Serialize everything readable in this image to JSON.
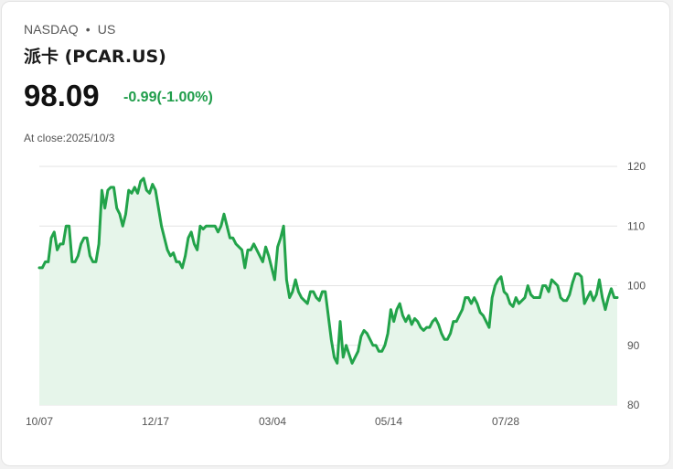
{
  "header": {
    "exchange": "NASDAQ",
    "market": "US",
    "name": "派卡 (PCAR.US)",
    "price": "98.09",
    "change": "-0.99(-1.00%)",
    "close_label": "At close:2025/10/3"
  },
  "colors": {
    "line": "#22a34a",
    "fill": "#e6f5ea",
    "change": "#1f9d4a",
    "grid": "#e3e3e3"
  },
  "chart_data": {
    "type": "area",
    "ylim": [
      80,
      120
    ],
    "yticks": [
      "80",
      "90",
      "100",
      "110",
      "120"
    ],
    "xticks": [
      "10/07",
      "12/17",
      "03/04",
      "05/14",
      "07/28"
    ],
    "grid": true,
    "values": [
      103.0,
      103.0,
      104.0,
      104.0,
      108.0,
      109.0,
      106.0,
      107.0,
      107.0,
      110.0,
      110.0,
      104.0,
      104.0,
      105.0,
      107.0,
      108.0,
      108.0,
      105.0,
      104.0,
      104.0,
      107.0,
      116.0,
      113.0,
      116.0,
      116.5,
      116.5,
      113.0,
      112.0,
      110.0,
      112.0,
      116.0,
      115.5,
      116.5,
      115.5,
      117.5,
      118.0,
      116.0,
      115.5,
      117.0,
      116.0,
      113.0,
      110.0,
      108.0,
      106.0,
      105.0,
      105.5,
      104.0,
      104.0,
      103.0,
      105.0,
      108.0,
      109.0,
      107.0,
      106.0,
      110.0,
      109.5,
      110.0,
      110.0,
      110.0,
      110.0,
      109.0,
      110.0,
      112.0,
      110.0,
      108.0,
      108.0,
      107.0,
      106.5,
      106.0,
      103.0,
      106.0,
      106.0,
      107.0,
      106.0,
      105.0,
      104.0,
      106.5,
      105.0,
      103.0,
      101.0,
      106.5,
      108.0,
      110.0,
      101.0,
      98.0,
      99.0,
      101.0,
      99.0,
      98.0,
      97.5,
      97.0,
      99.0,
      99.0,
      98.0,
      97.5,
      99.0,
      99.0,
      95.0,
      91.0,
      88.0,
      87.0,
      94.0,
      88.0,
      90.0,
      88.5,
      87.0,
      88.0,
      89.0,
      91.5,
      92.5,
      92.0,
      91.0,
      90.0,
      90.0,
      89.0,
      89.0,
      90.0,
      92.0,
      96.0,
      94.0,
      96.0,
      97.0,
      95.0,
      94.0,
      95.0,
      93.5,
      94.5,
      94.0,
      93.0,
      92.5,
      93.0,
      93.0,
      94.0,
      94.5,
      93.5,
      92.0,
      91.0,
      91.0,
      92.0,
      94.0,
      94.0,
      95.0,
      96.0,
      98.0,
      98.0,
      97.0,
      98.0,
      97.0,
      95.5,
      95.0,
      94.0,
      93.0,
      98.0,
      100.0,
      101.0,
      101.5,
      99.0,
      98.5,
      97.0,
      96.5,
      98.0,
      97.0,
      97.5,
      98.0,
      100.0,
      98.5,
      98.0,
      98.0,
      98.0,
      100.0,
      100.0,
      99.0,
      101.0,
      100.5,
      100.0,
      98.0,
      97.5,
      97.5,
      98.5,
      100.5,
      102.0,
      102.0,
      101.5,
      97.0,
      98.0,
      99.0,
      97.5,
      98.5,
      101.0,
      98.0,
      96.0,
      98.0,
      99.5,
      98.0,
      98.0
    ]
  }
}
